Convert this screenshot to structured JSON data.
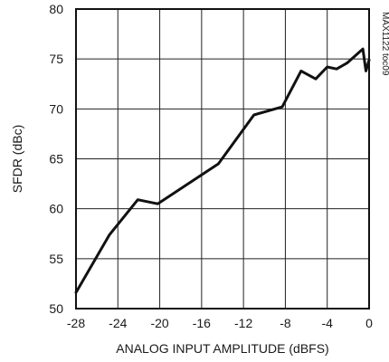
{
  "chart_data": {
    "type": "line",
    "title": "",
    "xlabel": "ANALOG INPUT AMPLITUDE (dBFS)",
    "ylabel": "SFDR (dBc)",
    "side_note": "MAX1122 toc09",
    "xlim": [
      -28,
      0
    ],
    "ylim": [
      50,
      80
    ],
    "x_ticks": [
      -28,
      -24,
      -20,
      -16,
      -12,
      -8,
      -4,
      0
    ],
    "x_tick_labels": [
      "-28",
      "-24",
      "-20",
      "-16",
      "-12",
      "-8",
      "-4",
      "0"
    ],
    "y_ticks": [
      50,
      55,
      60,
      65,
      70,
      75,
      80
    ],
    "y_tick_labels": [
      "50",
      "55",
      "60",
      "65",
      "70",
      "75",
      "80"
    ],
    "grid": true,
    "series": [
      {
        "x": [
          -28,
          -24.8,
          -22.1,
          -20.2,
          -14.4,
          -11,
          -8.3,
          -6.5,
          -5.1,
          -4.0,
          -3.1,
          -2.1,
          -0.6,
          -0.3,
          0
        ],
        "y": [
          51.6,
          57.4,
          60.9,
          60.5,
          64.5,
          69.4,
          70.2,
          73.8,
          73.0,
          74.2,
          74.0,
          74.6,
          76.0,
          73.8,
          74.9
        ]
      }
    ]
  }
}
